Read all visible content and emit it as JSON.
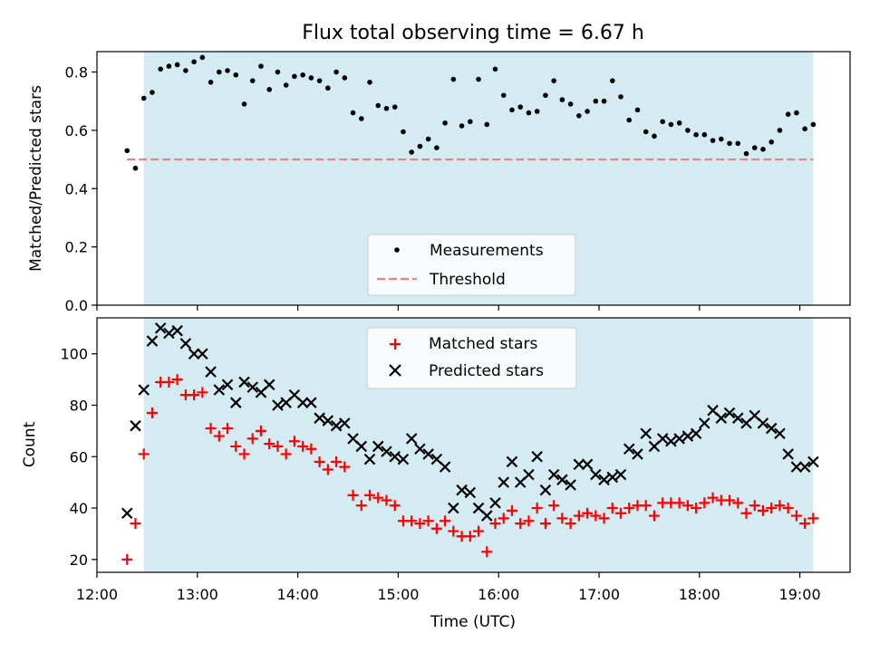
{
  "title": "Flux total observing time = 6.67 h",
  "colors": {
    "shade": "#d4ebf1",
    "threshold": "#f08080",
    "measurement": "#000000",
    "matched": "#ff0000",
    "predicted": "#000000"
  },
  "chart_data": [
    {
      "type": "scatter",
      "ylabel": "Matched/Predicted stars",
      "xlim": [
        "12:00",
        "19:30"
      ],
      "ylim": [
        0,
        0.87
      ],
      "yticks": [
        "0.0",
        "0.2",
        "0.4",
        "0.6",
        "0.8"
      ],
      "shaded_interval": [
        "12:28",
        "19:08"
      ],
      "legend": {
        "position": "lower-center",
        "entries": [
          "Measurements",
          "Threshold"
        ]
      },
      "threshold": {
        "name": "Threshold",
        "value": 0.5,
        "x": [
          "12:18",
          "19:08"
        ]
      },
      "series": [
        {
          "name": "Measurements",
          "x": [
            "12:18",
            "12:23",
            "12:28",
            "12:33",
            "12:38",
            "12:43",
            "12:48",
            "12:53",
            "12:58",
            "13:03",
            "13:08",
            "13:13",
            "13:18",
            "13:23",
            "13:28",
            "13:33",
            "13:38",
            "13:43",
            "13:48",
            "13:53",
            "13:58",
            "14:03",
            "14:08",
            "14:13",
            "14:18",
            "14:23",
            "14:28",
            "14:33",
            "14:38",
            "14:43",
            "14:48",
            "14:53",
            "14:58",
            "15:03",
            "15:08",
            "15:13",
            "15:18",
            "15:23",
            "15:28",
            "15:33",
            "15:38",
            "15:43",
            "15:48",
            "15:53",
            "15:58",
            "16:03",
            "16:08",
            "16:13",
            "16:18",
            "16:23",
            "16:28",
            "16:33",
            "16:38",
            "16:43",
            "16:48",
            "16:53",
            "16:58",
            "17:03",
            "17:08",
            "17:13",
            "17:18",
            "17:23",
            "17:28",
            "17:33",
            "17:38",
            "17:43",
            "17:48",
            "17:53",
            "17:58",
            "18:03",
            "18:08",
            "18:13",
            "18:18",
            "18:23",
            "18:28",
            "18:33",
            "18:38",
            "18:43",
            "18:48",
            "18:53",
            "18:58",
            "19:03",
            "19:08"
          ],
          "y": [
            0.53,
            0.47,
            0.71,
            0.73,
            0.81,
            0.82,
            0.825,
            0.805,
            0.835,
            0.85,
            0.765,
            0.8,
            0.805,
            0.79,
            0.69,
            0.77,
            0.82,
            0.74,
            0.8,
            0.755,
            0.785,
            0.79,
            0.78,
            0.77,
            0.745,
            0.8,
            0.78,
            0.66,
            0.64,
            0.765,
            0.685,
            0.675,
            0.68,
            0.595,
            0.525,
            0.545,
            0.57,
            0.54,
            0.625,
            0.775,
            0.615,
            0.63,
            0.775,
            0.62,
            0.81,
            0.72,
            0.67,
            0.68,
            0.66,
            0.665,
            0.72,
            0.77,
            0.705,
            0.69,
            0.65,
            0.665,
            0.7,
            0.7,
            0.77,
            0.715,
            0.635,
            0.67,
            0.595,
            0.58,
            0.63,
            0.62,
            0.625,
            0.6,
            0.585,
            0.585,
            0.565,
            0.57,
            0.555,
            0.555,
            0.52,
            0.54,
            0.535,
            0.56,
            0.6,
            0.655,
            0.66,
            0.605,
            0.62
          ]
        }
      ]
    },
    {
      "type": "scatter",
      "xlabel": "Time (UTC)",
      "ylabel": "Count",
      "xlim": [
        "12:00",
        "19:30"
      ],
      "xticks": [
        "12:00",
        "13:00",
        "14:00",
        "15:00",
        "16:00",
        "17:00",
        "18:00",
        "19:00"
      ],
      "ylim": [
        15,
        114
      ],
      "yticks": [
        "20",
        "40",
        "60",
        "80",
        "100"
      ],
      "shaded_interval": [
        "12:28",
        "19:08"
      ],
      "legend": {
        "position": "upper-center",
        "entries": [
          "Matched stars",
          "Predicted stars"
        ]
      },
      "series": [
        {
          "name": "Matched stars",
          "marker": "plus",
          "x": [
            "12:18",
            "12:23",
            "12:28",
            "12:33",
            "12:38",
            "12:43",
            "12:48",
            "12:53",
            "12:58",
            "13:03",
            "13:08",
            "13:13",
            "13:18",
            "13:23",
            "13:28",
            "13:33",
            "13:38",
            "13:43",
            "13:48",
            "13:53",
            "13:58",
            "14:03",
            "14:08",
            "14:13",
            "14:18",
            "14:23",
            "14:28",
            "14:33",
            "14:38",
            "14:43",
            "14:48",
            "14:53",
            "14:58",
            "15:03",
            "15:08",
            "15:13",
            "15:18",
            "15:23",
            "15:28",
            "15:33",
            "15:38",
            "15:43",
            "15:48",
            "15:53",
            "15:58",
            "16:03",
            "16:08",
            "16:13",
            "16:18",
            "16:23",
            "16:28",
            "16:33",
            "16:38",
            "16:43",
            "16:48",
            "16:53",
            "16:58",
            "17:03",
            "17:08",
            "17:13",
            "17:18",
            "17:23",
            "17:28",
            "17:33",
            "17:38",
            "17:43",
            "17:48",
            "17:53",
            "17:58",
            "18:03",
            "18:08",
            "18:13",
            "18:18",
            "18:23",
            "18:28",
            "18:33",
            "18:38",
            "18:43",
            "18:48",
            "18:53",
            "18:58",
            "19:03",
            "19:08"
          ],
          "y": [
            20,
            34,
            61,
            77,
            89,
            89,
            90,
            84,
            84,
            85,
            71,
            68,
            71,
            64,
            61,
            67,
            70,
            65,
            64,
            61,
            66,
            64,
            63,
            58,
            55,
            58,
            56,
            45,
            41,
            45,
            44,
            43,
            41,
            35,
            35,
            34,
            35,
            32,
            35,
            31,
            29,
            29,
            31,
            23,
            34,
            36,
            39,
            34,
            35,
            40,
            34,
            41,
            36,
            34,
            37,
            38,
            37,
            36,
            40,
            38,
            40,
            41,
            41,
            37,
            42,
            42,
            42,
            41,
            40,
            42,
            44,
            43,
            43,
            42,
            38,
            41,
            39,
            40,
            41,
            40,
            37,
            34,
            36
          ]
        },
        {
          "name": "Predicted stars",
          "marker": "x",
          "x": [
            "12:18",
            "12:23",
            "12:28",
            "12:33",
            "12:38",
            "12:43",
            "12:48",
            "12:53",
            "12:58",
            "13:03",
            "13:08",
            "13:13",
            "13:18",
            "13:23",
            "13:28",
            "13:33",
            "13:38",
            "13:43",
            "13:48",
            "13:53",
            "13:58",
            "14:03",
            "14:08",
            "14:13",
            "14:18",
            "14:23",
            "14:28",
            "14:33",
            "14:38",
            "14:43",
            "14:48",
            "14:53",
            "14:58",
            "15:03",
            "15:08",
            "15:13",
            "15:18",
            "15:23",
            "15:28",
            "15:33",
            "15:38",
            "15:43",
            "15:48",
            "15:53",
            "15:58",
            "16:03",
            "16:08",
            "16:13",
            "16:18",
            "16:23",
            "16:28",
            "16:33",
            "16:38",
            "16:43",
            "16:48",
            "16:53",
            "16:58",
            "17:03",
            "17:08",
            "17:13",
            "17:18",
            "17:23",
            "17:28",
            "17:33",
            "17:38",
            "17:43",
            "17:48",
            "17:53",
            "17:58",
            "18:03",
            "18:08",
            "18:13",
            "18:18",
            "18:23",
            "18:28",
            "18:33",
            "18:38",
            "18:43",
            "18:48",
            "18:53",
            "18:58",
            "19:03",
            "19:08"
          ],
          "y": [
            38,
            72,
            86,
            105,
            110,
            108,
            109,
            104,
            100,
            100,
            93,
            86,
            88,
            81,
            89,
            87,
            85,
            88,
            80,
            81,
            84,
            81,
            81,
            75,
            74,
            72,
            73,
            67,
            64,
            59,
            64,
            62,
            60,
            59,
            67,
            63,
            61,
            59,
            56,
            40,
            47,
            46,
            40,
            37,
            42,
            50,
            58,
            50,
            53,
            60,
            47,
            53,
            51,
            49,
            57,
            57,
            53,
            51,
            52,
            53,
            63,
            61,
            69,
            64,
            67,
            66,
            67,
            68,
            69,
            73,
            78,
            75,
            77,
            75,
            73,
            76,
            73,
            71,
            69,
            61,
            56,
            56,
            58
          ]
        }
      ]
    }
  ]
}
